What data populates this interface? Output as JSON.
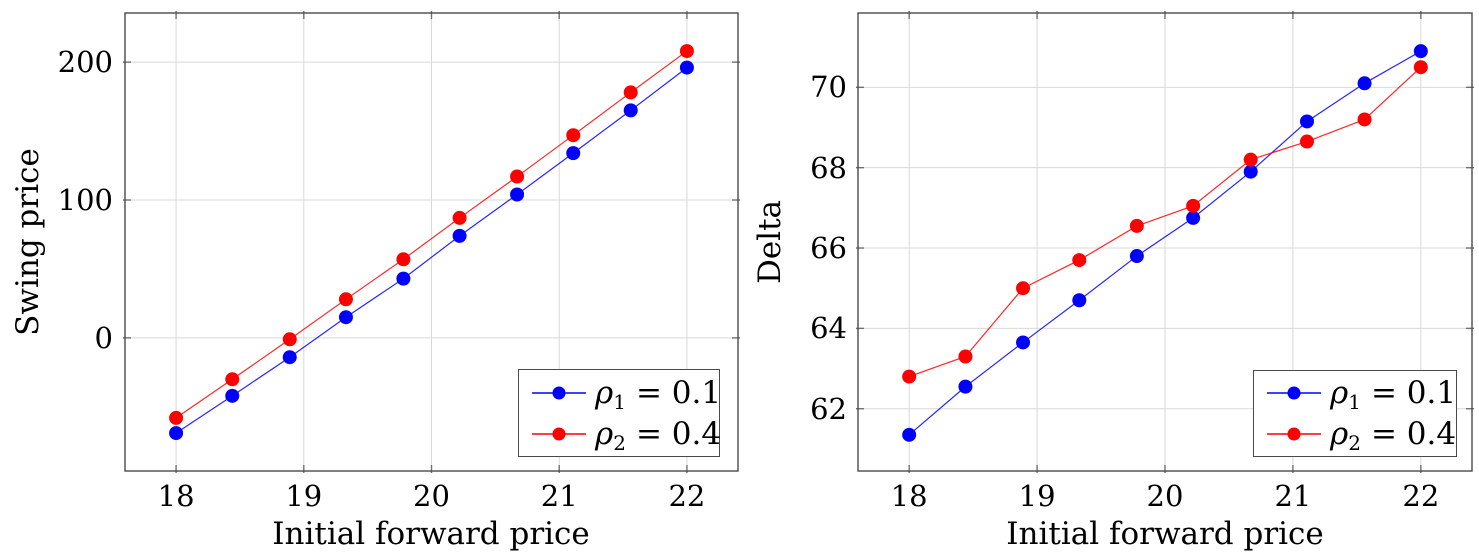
{
  "figure": {
    "background_color": "#ffffff",
    "grid_color": "#d9d9d9",
    "frame_color": "#4a4a4a",
    "tick_color": "#707070"
  },
  "chart_data": [
    {
      "type": "line",
      "title": "",
      "xlabel": "Initial forward price",
      "ylabel": "Swing price",
      "x_ticks": [
        18,
        19,
        20,
        21,
        22
      ],
      "y_ticks": [
        0,
        100,
        200
      ],
      "xlim": [
        17.6,
        22.4
      ],
      "ylim": [
        -96.5,
        235.6
      ],
      "grid": true,
      "legend_position": "south east",
      "x": [
        18,
        18.44,
        18.89,
        19.33,
        19.78,
        20.22,
        20.67,
        21.11,
        21.56,
        22
      ],
      "series": [
        {
          "name": "rho1",
          "color": "#0000ff",
          "marker": "filled-circle",
          "legend": {
            "symbol": "ρ",
            "subscript": "1",
            "rest": "= 0.1"
          },
          "values": [
            -69,
            -42,
            -14,
            15,
            43,
            74,
            104,
            134,
            165,
            196
          ]
        },
        {
          "name": "rho2",
          "color": "#ff0000",
          "marker": "filled-circle",
          "legend": {
            "symbol": "ρ",
            "subscript": "2",
            "rest": "= 0.4"
          },
          "values": [
            -58,
            -30,
            -1,
            28,
            57,
            87,
            117,
            147,
            178,
            208
          ]
        }
      ]
    },
    {
      "type": "line",
      "title": "",
      "xlabel": "Initial forward price",
      "ylabel": "Delta",
      "x_ticks": [
        18,
        19,
        20,
        21,
        22
      ],
      "y_ticks": [
        62,
        64,
        66,
        68,
        70
      ],
      "xlim": [
        17.6,
        22.4
      ],
      "ylim": [
        60.45,
        71.85
      ],
      "grid": true,
      "legend_position": "south east",
      "x": [
        18,
        18.44,
        18.89,
        19.33,
        19.78,
        20.22,
        20.67,
        21.11,
        21.56,
        22
      ],
      "series": [
        {
          "name": "rho1",
          "color": "#0000ff",
          "marker": "filled-circle",
          "legend": {
            "symbol": "ρ",
            "subscript": "1",
            "rest": "= 0.1"
          },
          "values": [
            61.35,
            62.55,
            63.65,
            64.7,
            65.8,
            66.75,
            67.9,
            69.15,
            70.1,
            70.9
          ]
        },
        {
          "name": "rho2",
          "color": "#ff0000",
          "marker": "filled-circle",
          "legend": {
            "symbol": "ρ",
            "subscript": "2",
            "rest": "= 0.4"
          },
          "values": [
            62.8,
            63.3,
            65.0,
            65.7,
            66.55,
            67.05,
            68.2,
            68.65,
            69.2,
            70.5
          ]
        }
      ]
    }
  ]
}
